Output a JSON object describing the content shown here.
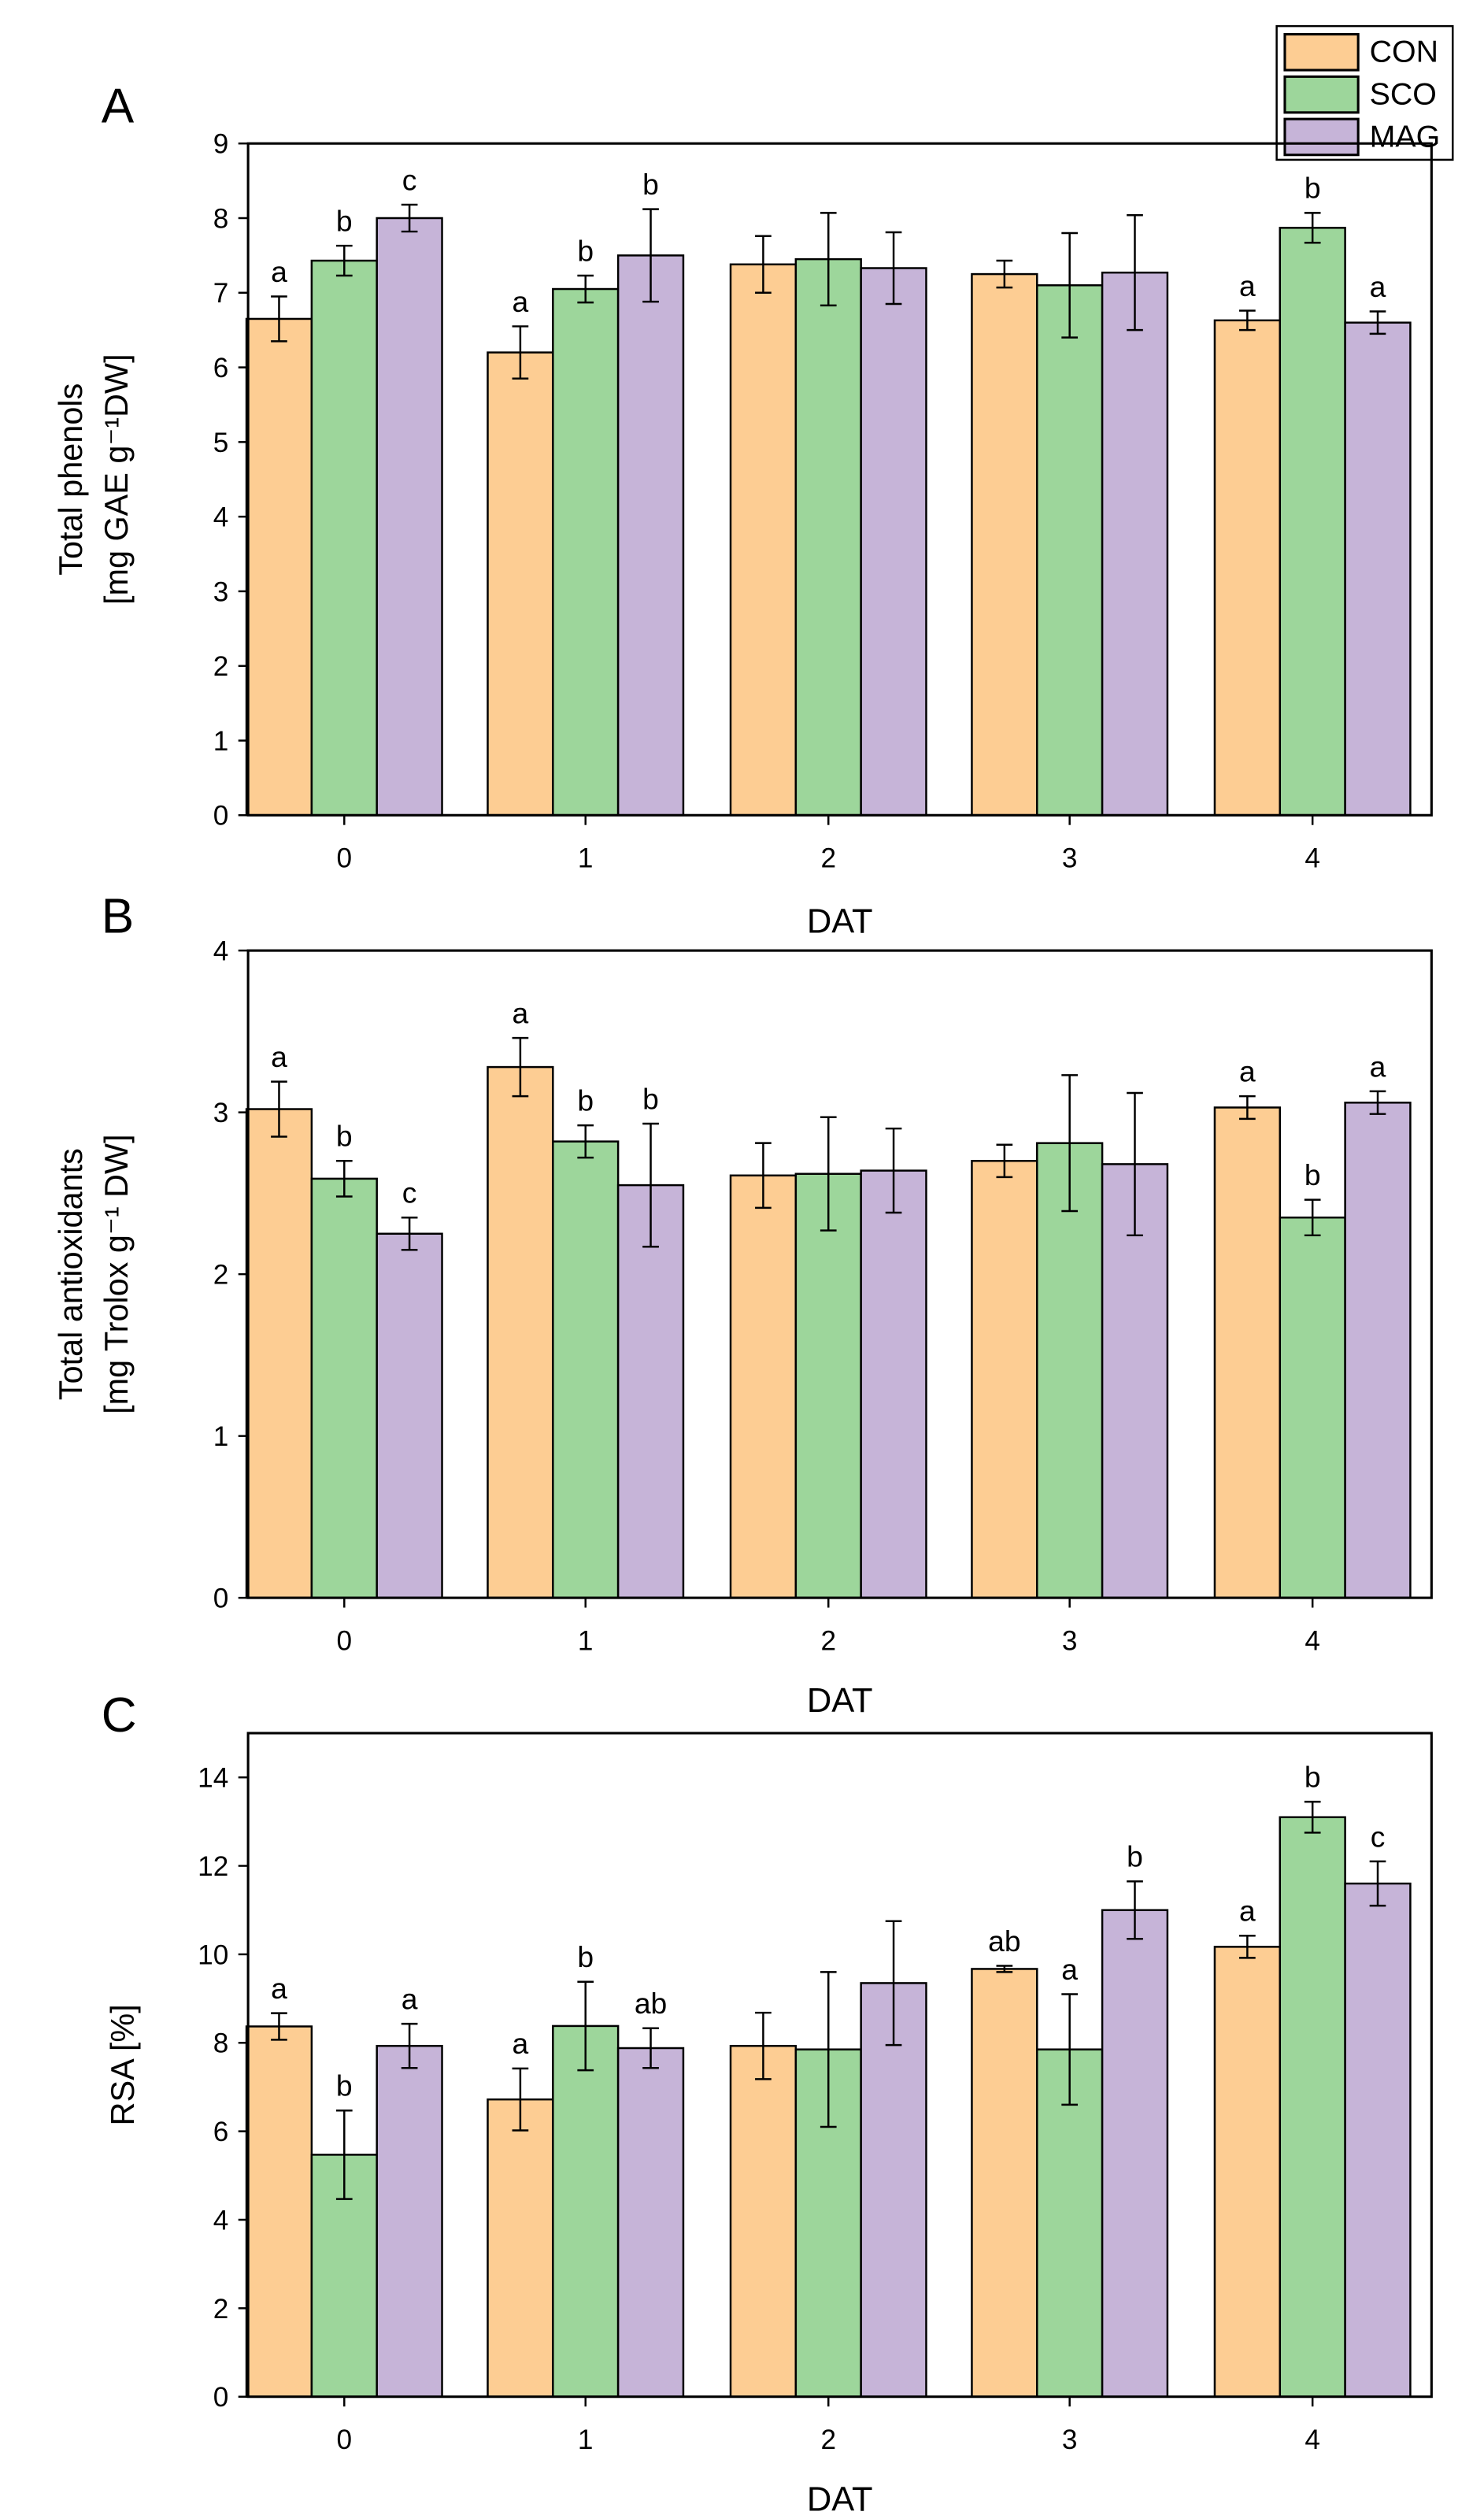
{
  "legend": {
    "items": [
      {
        "label": "CON",
        "color": "#fdcd93"
      },
      {
        "label": "SCO",
        "color": "#9dd69b"
      },
      {
        "label": "MAG",
        "color": "#c6b4d8"
      }
    ]
  },
  "chart_data": [
    {
      "type": "bar",
      "panel": "A",
      "ylabel_line1": "Total phenols",
      "ylabel_line2": "[mg GAE g⁻¹DW]",
      "xlabel": "DAT",
      "categories": [
        "0",
        "1",
        "2",
        "3",
        "4"
      ],
      "ylim": [
        0,
        9
      ],
      "yticks": [
        "0",
        "1",
        "2",
        "3",
        "4",
        "5",
        "6",
        "7",
        "8",
        "9"
      ],
      "series": [
        {
          "name": "CON",
          "values": [
            6.65,
            6.2,
            7.38,
            7.25,
            6.63
          ],
          "errors": [
            0.3,
            0.35,
            0.38,
            0.18,
            0.13
          ],
          "letters": [
            "a",
            "a",
            "",
            "",
            "a"
          ]
        },
        {
          "name": "SCO",
          "values": [
            7.43,
            7.05,
            7.45,
            7.1,
            7.87
          ],
          "errors": [
            0.2,
            0.18,
            0.62,
            0.7,
            0.2
          ],
          "letters": [
            "b",
            "b",
            "",
            "",
            "b"
          ]
        },
        {
          "name": "MAG",
          "values": [
            8.0,
            7.5,
            7.33,
            7.27,
            6.6
          ],
          "errors": [
            0.18,
            0.62,
            0.48,
            0.77,
            0.15
          ],
          "letters": [
            "c",
            "b",
            "",
            "",
            "a"
          ]
        }
      ]
    },
    {
      "type": "bar",
      "panel": "B",
      "ylabel_line1": "Total antioxidants",
      "ylabel_line2": "[mg Trolox g⁻¹ DW]",
      "xlabel": "DAT",
      "categories": [
        "0",
        "1",
        "2",
        "3",
        "4"
      ],
      "ylim": [
        0,
        4
      ],
      "yticks": [
        "0",
        "1",
        "2",
        "3",
        "4"
      ],
      "series": [
        {
          "name": "CON",
          "values": [
            3.02,
            3.28,
            2.61,
            2.7,
            3.03
          ],
          "errors": [
            0.17,
            0.18,
            0.2,
            0.1,
            0.07
          ],
          "letters": [
            "a",
            "a",
            "",
            "",
            "a"
          ]
        },
        {
          "name": "SCO",
          "values": [
            2.59,
            2.82,
            2.62,
            2.81,
            2.35
          ],
          "errors": [
            0.11,
            0.1,
            0.35,
            0.42,
            0.11
          ],
          "letters": [
            "b",
            "b",
            "",
            "",
            "b"
          ]
        },
        {
          "name": "MAG",
          "values": [
            2.25,
            2.55,
            2.64,
            2.68,
            3.06
          ],
          "errors": [
            0.1,
            0.38,
            0.26,
            0.44,
            0.07
          ],
          "letters": [
            "c",
            "b",
            "",
            "",
            "a"
          ]
        }
      ]
    },
    {
      "type": "bar",
      "panel": "C",
      "ylabel_line1": "RSA [%]",
      "ylabel_line2": "",
      "xlabel": "DAT",
      "categories": [
        "0",
        "1",
        "2",
        "3",
        "4"
      ],
      "ylim": [
        0,
        15
      ],
      "yticks": [
        "0",
        "2",
        "4",
        "6",
        "8",
        "10",
        "12",
        "14"
      ],
      "series": [
        {
          "name": "CON",
          "values": [
            8.37,
            6.72,
            7.93,
            9.67,
            10.17
          ],
          "errors": [
            0.3,
            0.7,
            0.75,
            0.07,
            0.25
          ],
          "letters": [
            "a",
            "a",
            "",
            "ab",
            "a"
          ]
        },
        {
          "name": "SCO",
          "values": [
            5.47,
            8.38,
            7.85,
            7.85,
            13.1
          ],
          "errors": [
            1.0,
            1.0,
            1.75,
            1.25,
            0.35
          ],
          "letters": [
            "b",
            "b",
            "",
            "a",
            "b"
          ]
        },
        {
          "name": "MAG",
          "values": [
            7.93,
            7.88,
            9.35,
            11.0,
            11.6
          ],
          "errors": [
            0.5,
            0.45,
            1.4,
            0.65,
            0.5
          ],
          "letters": [
            "a",
            "ab",
            "",
            "b",
            "c"
          ]
        }
      ]
    }
  ]
}
